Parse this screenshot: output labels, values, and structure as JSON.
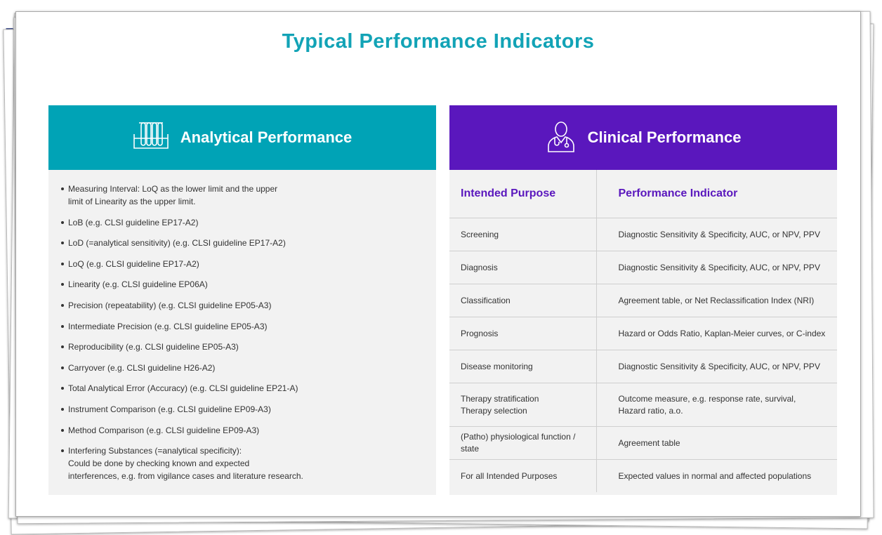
{
  "title": "Typical Performance Indicators",
  "colors": {
    "title": "#12a3b6",
    "analytical_header": "#00a3b6",
    "clinical_header": "#5a17bd",
    "panel_bg": "#f2f2f2"
  },
  "analytical": {
    "icon": "test-tubes-icon",
    "heading": "Analytical Performance",
    "items": [
      [
        "Measuring Interval: LoQ as the lower limit and the upper",
        "limit of Linearity as the upper limit."
      ],
      [
        "LoB (e.g. CLSI guideline EP17-A2)"
      ],
      [
        "LoD (=analytical sensitivity) (e.g. CLSI guideline EP17-A2)"
      ],
      [
        "LoQ (e.g. CLSI guideline EP17-A2)"
      ],
      [
        "Linearity (e.g. CLSI guideline EP06A)"
      ],
      [
        "Precision (repeatability) (e.g. CLSI guideline EP05-A3)"
      ],
      [
        "Intermediate Precision (e.g. CLSI guideline EP05-A3)"
      ],
      [
        "Reproducibility (e.g. CLSI guideline EP05-A3)"
      ],
      [
        "Carryover (e.g. CLSI guideline H26-A2)"
      ],
      [
        "Total Analytical Error (Accuracy) (e.g. CLSI guideline EP21-A)"
      ],
      [
        "Instrument Comparison (e.g. CLSI guideline EP09-A3)"
      ],
      [
        "Method Comparison (e.g. CLSI guideline EP09-A3)"
      ],
      [
        "Interfering Substances (=analytical specificity):",
        "Could be done by checking known and expected",
        "interferences, e.g. from vigilance cases and literature research."
      ]
    ]
  },
  "clinical": {
    "icon": "doctor-icon",
    "heading": "Clinical Performance",
    "col_headers": [
      "Intended Purpose",
      "Performance Indicator"
    ],
    "rows": [
      [
        [
          "Screening"
        ],
        [
          "Diagnostic Sensitivity & Specificity, AUC, or NPV, PPV"
        ]
      ],
      [
        [
          "Diagnosis"
        ],
        [
          "Diagnostic Sensitivity & Specificity, AUC, or NPV, PPV"
        ]
      ],
      [
        [
          "Classification"
        ],
        [
          "Agreement table, or Net Reclassification Index (NRI)"
        ]
      ],
      [
        [
          "Prognosis"
        ],
        [
          "Hazard or Odds Ratio, Kaplan-Meier curves, or C-index"
        ]
      ],
      [
        [
          "Disease monitoring"
        ],
        [
          "Diagnostic Sensitivity & Specificity, AUC, or NPV, PPV"
        ]
      ],
      [
        [
          "Therapy stratification",
          "Therapy selection"
        ],
        [
          "Outcome measure, e.g. response rate, survival,",
          "Hazard ratio, a.o."
        ]
      ],
      [
        [
          "(Patho) physiological function / state"
        ],
        [
          "Agreement table"
        ]
      ],
      [
        [
          "For all Intended Purposes"
        ],
        [
          "Expected values in normal and affected populations"
        ]
      ]
    ]
  }
}
